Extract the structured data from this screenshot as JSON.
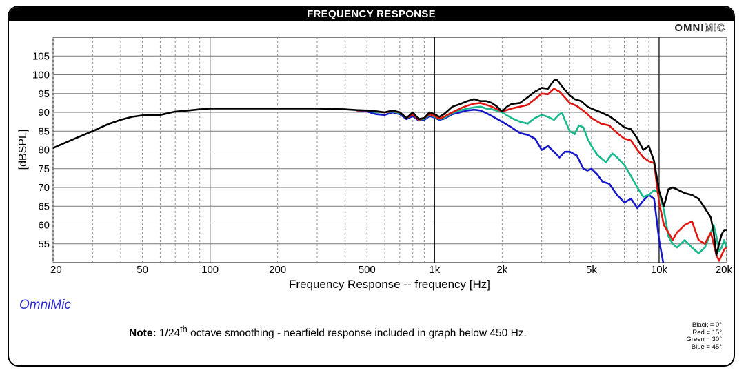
{
  "header": {
    "title": "FREQUENCY RESPONSE",
    "logo_bold": "OMNI",
    "logo_outline": "MIC"
  },
  "brand": "OmniMic",
  "note": {
    "label": "Note:",
    "pre": "1/24",
    "sup": "th",
    "post": " octave smoothing - nearfield response included in graph below 450 Hz."
  },
  "legend": [
    "Black = 0°",
    "Red = 15°",
    "Green = 30°",
    "Blue = 45°"
  ],
  "colors": {
    "black": "#000000",
    "red": "#e0150f",
    "green": "#18b98c",
    "blue": "#1717c8",
    "grid": "#7a7a7a"
  },
  "chart_data": {
    "type": "line",
    "title": "FREQUENCY RESPONSE",
    "xlabel": "Frequency Response -- frequency [Hz]",
    "ylabel": "[dBSPL]",
    "x_scale": "log",
    "xlim": [
      20,
      20000
    ],
    "ylim": [
      50,
      110
    ],
    "x_ticks": [
      {
        "value": 20,
        "label": "20"
      },
      {
        "value": 50,
        "label": "50"
      },
      {
        "value": 100,
        "label": "100"
      },
      {
        "value": 200,
        "label": "200"
      },
      {
        "value": 500,
        "label": "500"
      },
      {
        "value": 1000,
        "label": "1k"
      },
      {
        "value": 2000,
        "label": "2k"
      },
      {
        "value": 5000,
        "label": "5k"
      },
      {
        "value": 10000,
        "label": "10k"
      },
      {
        "value": 20000,
        "label": "20k"
      }
    ],
    "y_ticks": [
      55,
      60,
      65,
      70,
      75,
      80,
      85,
      90,
      95,
      100,
      105
    ],
    "grid": true,
    "series": [
      {
        "name": "Black = 0°",
        "color": "#000000",
        "points": [
          [
            20,
            80.5
          ],
          [
            25,
            83
          ],
          [
            30,
            85
          ],
          [
            35,
            86.8
          ],
          [
            40,
            88
          ],
          [
            45,
            88.8
          ],
          [
            50,
            89.2
          ],
          [
            60,
            89.3
          ],
          [
            70,
            90.2
          ],
          [
            80,
            90.5
          ],
          [
            90,
            90.8
          ],
          [
            100,
            91
          ],
          [
            120,
            91
          ],
          [
            150,
            91
          ],
          [
            200,
            91
          ],
          [
            250,
            91
          ],
          [
            300,
            91
          ],
          [
            400,
            90.8
          ],
          [
            450,
            90.6
          ],
          [
            500,
            90.5
          ],
          [
            550,
            90.3
          ],
          [
            600,
            90
          ],
          [
            650,
            90.5
          ],
          [
            700,
            90
          ],
          [
            750,
            88.5
          ],
          [
            800,
            90
          ],
          [
            850,
            88.2
          ],
          [
            900,
            88.5
          ],
          [
            950,
            90
          ],
          [
            1000,
            89.5
          ],
          [
            1050,
            88.8
          ],
          [
            1100,
            89.5
          ],
          [
            1200,
            91.5
          ],
          [
            1300,
            92.2
          ],
          [
            1400,
            93
          ],
          [
            1500,
            93.5
          ],
          [
            1600,
            93
          ],
          [
            1700,
            93
          ],
          [
            1800,
            92.5
          ],
          [
            1900,
            91.5
          ],
          [
            2000,
            90.2
          ],
          [
            2100,
            91.5
          ],
          [
            2200,
            92.2
          ],
          [
            2400,
            92.5
          ],
          [
            2600,
            94
          ],
          [
            2800,
            95.5
          ],
          [
            3000,
            96.5
          ],
          [
            3200,
            96.3
          ],
          [
            3400,
            98.5
          ],
          [
            3500,
            98.7
          ],
          [
            3600,
            97.8
          ],
          [
            3800,
            96
          ],
          [
            4000,
            94.5
          ],
          [
            4200,
            93.5
          ],
          [
            4500,
            93
          ],
          [
            4800,
            91.5
          ],
          [
            5000,
            91
          ],
          [
            5500,
            90
          ],
          [
            6000,
            89
          ],
          [
            6500,
            87.5
          ],
          [
            7000,
            86
          ],
          [
            7500,
            85.5
          ],
          [
            8000,
            83
          ],
          [
            8500,
            80
          ],
          [
            9000,
            81
          ],
          [
            9500,
            77
          ],
          [
            10000,
            69
          ],
          [
            10500,
            65
          ],
          [
            11000,
            69.5
          ],
          [
            11500,
            70
          ],
          [
            12000,
            69.5
          ],
          [
            13000,
            68.5
          ],
          [
            14000,
            68
          ],
          [
            15000,
            67
          ],
          [
            16000,
            64.5
          ],
          [
            17000,
            62
          ],
          [
            17500,
            58
          ],
          [
            18000,
            52
          ],
          [
            18500,
            55
          ],
          [
            19000,
            57.5
          ],
          [
            19500,
            58.7
          ],
          [
            20000,
            58.7
          ]
        ]
      },
      {
        "name": "Red = 15°",
        "color": "#e0150f",
        "points": [
          [
            450,
            90.5
          ],
          [
            500,
            90.5
          ],
          [
            550,
            90.2
          ],
          [
            600,
            90
          ],
          [
            650,
            90.3
          ],
          [
            700,
            90
          ],
          [
            750,
            88.5
          ],
          [
            800,
            89.5
          ],
          [
            850,
            88
          ],
          [
            900,
            88.5
          ],
          [
            950,
            89.5
          ],
          [
            1000,
            89
          ],
          [
            1050,
            88.3
          ],
          [
            1100,
            88.8
          ],
          [
            1200,
            90
          ],
          [
            1300,
            91
          ],
          [
            1400,
            91.8
          ],
          [
            1500,
            92.3
          ],
          [
            1600,
            92.5
          ],
          [
            1700,
            92
          ],
          [
            1800,
            91.5
          ],
          [
            2000,
            90.2
          ],
          [
            2200,
            91
          ],
          [
            2400,
            91.5
          ],
          [
            2600,
            92
          ],
          [
            2800,
            93.5
          ],
          [
            3000,
            95
          ],
          [
            3200,
            94.8
          ],
          [
            3400,
            96.3
          ],
          [
            3600,
            95.5
          ],
          [
            3800,
            94
          ],
          [
            4000,
            92.5
          ],
          [
            4300,
            91.7
          ],
          [
            4700,
            90
          ],
          [
            5000,
            88.5
          ],
          [
            5500,
            87
          ],
          [
            6000,
            86.5
          ],
          [
            6500,
            84.5
          ],
          [
            7000,
            83
          ],
          [
            7500,
            82.5
          ],
          [
            8000,
            80
          ],
          [
            8500,
            78
          ],
          [
            9000,
            77
          ],
          [
            9500,
            76.5
          ],
          [
            10000,
            66
          ],
          [
            10500,
            60
          ],
          [
            11000,
            58
          ],
          [
            11500,
            56
          ],
          [
            12000,
            58
          ],
          [
            13000,
            60
          ],
          [
            14000,
            61
          ],
          [
            15000,
            56
          ],
          [
            16000,
            55
          ],
          [
            17000,
            58
          ],
          [
            17500,
            55
          ],
          [
            18000,
            52
          ],
          [
            18500,
            50.5
          ],
          [
            19000,
            52
          ],
          [
            19500,
            53.5
          ],
          [
            20000,
            54
          ]
        ]
      },
      {
        "name": "Green = 30°",
        "color": "#18b98c",
        "points": [
          [
            450,
            90.5
          ],
          [
            500,
            90.5
          ],
          [
            550,
            90
          ],
          [
            600,
            90
          ],
          [
            650,
            90.2
          ],
          [
            700,
            89.8
          ],
          [
            750,
            88.5
          ],
          [
            800,
            89.5
          ],
          [
            850,
            88
          ],
          [
            900,
            88.3
          ],
          [
            950,
            89.3
          ],
          [
            1000,
            88.8
          ],
          [
            1050,
            88.2
          ],
          [
            1100,
            88.5
          ],
          [
            1200,
            89.8
          ],
          [
            1300,
            90.5
          ],
          [
            1400,
            91
          ],
          [
            1500,
            91.3
          ],
          [
            1600,
            91.5
          ],
          [
            1700,
            91
          ],
          [
            1800,
            90.8
          ],
          [
            2000,
            90
          ],
          [
            2200,
            88.5
          ],
          [
            2400,
            87.5
          ],
          [
            2600,
            87
          ],
          [
            2800,
            88.5
          ],
          [
            3000,
            89.3
          ],
          [
            3200,
            88.8
          ],
          [
            3400,
            88
          ],
          [
            3600,
            89.5
          ],
          [
            3700,
            89.8
          ],
          [
            3800,
            88
          ],
          [
            4000,
            85
          ],
          [
            4200,
            84.2
          ],
          [
            4400,
            86.5
          ],
          [
            4600,
            86
          ],
          [
            4800,
            83
          ],
          [
            5000,
            81
          ],
          [
            5300,
            78.7
          ],
          [
            5600,
            77.5
          ],
          [
            5800,
            76.7
          ],
          [
            6000,
            78
          ],
          [
            6200,
            79
          ],
          [
            6500,
            78
          ],
          [
            7000,
            76
          ],
          [
            7500,
            73
          ],
          [
            8000,
            70
          ],
          [
            8500,
            67.5
          ],
          [
            9000,
            68
          ],
          [
            9500,
            69.3
          ],
          [
            10000,
            68.5
          ],
          [
            10500,
            64
          ],
          [
            11000,
            57
          ],
          [
            11500,
            55
          ],
          [
            12000,
            54
          ],
          [
            13000,
            56
          ],
          [
            14000,
            54
          ],
          [
            15000,
            52.5
          ],
          [
            16000,
            54
          ],
          [
            17000,
            58
          ],
          [
            17500,
            60
          ],
          [
            18000,
            57
          ],
          [
            18500,
            53
          ],
          [
            19000,
            54
          ],
          [
            19500,
            56
          ],
          [
            20000,
            54
          ]
        ]
      },
      {
        "name": "Blue = 45°",
        "color": "#1717c8",
        "points": [
          [
            450,
            90.5
          ],
          [
            500,
            90.2
          ],
          [
            550,
            89.5
          ],
          [
            600,
            89.3
          ],
          [
            650,
            90
          ],
          [
            700,
            89.5
          ],
          [
            750,
            88.2
          ],
          [
            800,
            89
          ],
          [
            850,
            87.8
          ],
          [
            900,
            88
          ],
          [
            950,
            89
          ],
          [
            1000,
            88.6
          ],
          [
            1050,
            88
          ],
          [
            1100,
            88.3
          ],
          [
            1200,
            89.5
          ],
          [
            1300,
            90
          ],
          [
            1400,
            90.5
          ],
          [
            1500,
            90.7
          ],
          [
            1600,
            90.5
          ],
          [
            1700,
            89.8
          ],
          [
            1800,
            89
          ],
          [
            2000,
            87.5
          ],
          [
            2200,
            86
          ],
          [
            2400,
            84.5
          ],
          [
            2600,
            84
          ],
          [
            2800,
            83
          ],
          [
            3000,
            80
          ],
          [
            3200,
            81
          ],
          [
            3400,
            79.5
          ],
          [
            3600,
            78
          ],
          [
            3800,
            79.5
          ],
          [
            4000,
            79.5
          ],
          [
            4300,
            78.5
          ],
          [
            4600,
            75
          ],
          [
            4800,
            74.5
          ],
          [
            5000,
            75
          ],
          [
            5300,
            73.5
          ],
          [
            5600,
            71.5
          ],
          [
            6000,
            71
          ],
          [
            6500,
            68
          ],
          [
            7000,
            66
          ],
          [
            7500,
            67
          ],
          [
            8000,
            64.5
          ],
          [
            8500,
            66.5
          ],
          [
            9000,
            68
          ],
          [
            9500,
            67
          ],
          [
            10000,
            56
          ],
          [
            10500,
            49
          ],
          [
            20000,
            49
          ]
        ]
      }
    ]
  }
}
